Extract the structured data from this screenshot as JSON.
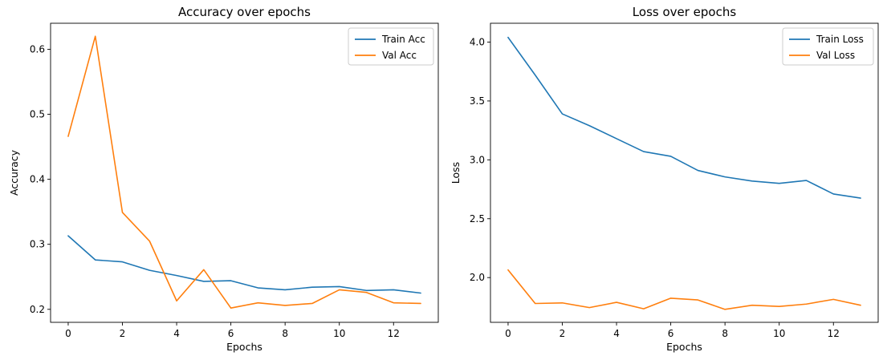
{
  "chart_data": [
    {
      "type": "line",
      "title": "Accuracy over epochs",
      "xlabel": "Epochs",
      "ylabel": "Accuracy",
      "x": [
        0,
        1,
        2,
        3,
        4,
        5,
        6,
        7,
        8,
        9,
        10,
        11,
        12,
        13
      ],
      "xticks": [
        0,
        2,
        4,
        6,
        8,
        10,
        12
      ],
      "xlim": [
        -0.65,
        13.65
      ],
      "yticks": [
        0.2,
        0.3,
        0.4,
        0.5,
        0.6
      ],
      "ylim": [
        0.18,
        0.64
      ],
      "grid": false,
      "legend_position": "top-right",
      "series": [
        {
          "name": "Train Acc",
          "color": "#1f77b4",
          "values": [
            0.313,
            0.276,
            0.273,
            0.26,
            0.252,
            0.243,
            0.244,
            0.233,
            0.23,
            0.234,
            0.235,
            0.229,
            0.23,
            0.225
          ]
        },
        {
          "name": "Val Acc",
          "color": "#ff7f0e",
          "values": [
            0.466,
            0.62,
            0.349,
            0.305,
            0.213,
            0.261,
            0.202,
            0.21,
            0.206,
            0.209,
            0.23,
            0.226,
            0.21,
            0.209
          ]
        }
      ]
    },
    {
      "type": "line",
      "title": "Loss over epochs",
      "xlabel": "Epochs",
      "ylabel": "Loss",
      "x": [
        0,
        1,
        2,
        3,
        4,
        5,
        6,
        7,
        8,
        9,
        10,
        11,
        12,
        13
      ],
      "xticks": [
        0,
        2,
        4,
        6,
        8,
        10,
        12
      ],
      "xlim": [
        -0.65,
        13.65
      ],
      "yticks": [
        2.0,
        2.5,
        3.0,
        3.5,
        4.0
      ],
      "ylim": [
        1.62,
        4.16
      ],
      "grid": false,
      "legend_position": "top-right",
      "series": [
        {
          "name": "Train Loss",
          "color": "#1f77b4",
          "values": [
            4.04,
            3.72,
            3.39,
            3.29,
            3.18,
            3.07,
            3.03,
            2.91,
            2.855,
            2.82,
            2.8,
            2.825,
            2.71,
            2.675
          ]
        },
        {
          "name": "Val Loss",
          "color": "#ff7f0e",
          "values": [
            2.065,
            1.78,
            1.785,
            1.745,
            1.79,
            1.735,
            1.825,
            1.81,
            1.73,
            1.765,
            1.755,
            1.775,
            1.815,
            1.765
          ]
        }
      ]
    }
  ]
}
